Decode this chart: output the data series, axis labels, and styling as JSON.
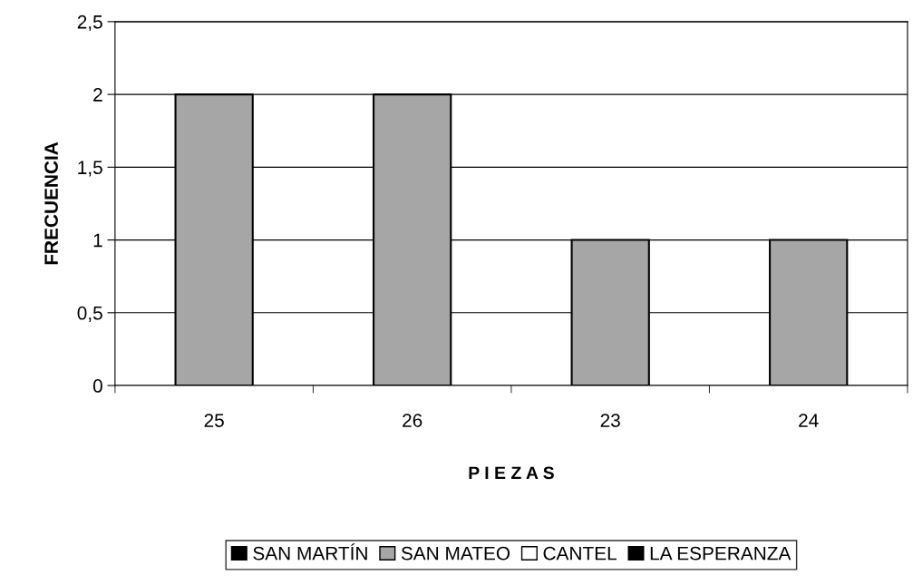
{
  "chart_data": {
    "type": "bar",
    "xlabel": "P I E Z A S",
    "ylabel": "FRECUENCIA",
    "categories": [
      "25",
      "26",
      "23",
      "24"
    ],
    "series": [
      {
        "name": "SAN MARTÍN",
        "color": "#000000",
        "values": [
          null,
          null,
          null,
          null
        ]
      },
      {
        "name": "SAN MATEO",
        "color": "#a6a6a6",
        "values": [
          2,
          2,
          1,
          1
        ]
      },
      {
        "name": "CANTEL",
        "color": "#ffffff",
        "values": [
          null,
          null,
          null,
          null
        ]
      },
      {
        "name": "LA ESPERANZA",
        "color": "#000000",
        "values": [
          null,
          null,
          null,
          null
        ]
      }
    ],
    "ylim": [
      0,
      2.5
    ],
    "yticks": [
      0,
      {
        "value": 0.5,
        "label": "0,5"
      },
      1,
      {
        "value": 1.5,
        "label": "1,5"
      },
      2,
      {
        "value": 2.5,
        "label": "2,5"
      }
    ],
    "grid": "y",
    "legend": "bottom"
  }
}
